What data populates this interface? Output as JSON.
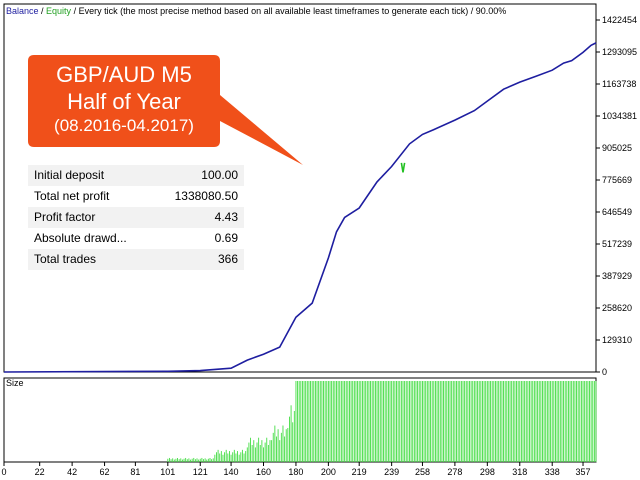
{
  "legend": {
    "balance": "Balance",
    "sep1": " / ",
    "equity": "Equity",
    "rest": " / Every tick (the most precise method based on all available least timeframes to generate each tick)",
    "sep2": " / ",
    "quality": "90.00%"
  },
  "callout": {
    "line1": "GBP/AUD M5",
    "line2": "Half of Year",
    "line3": "(08.2016-04.2017)",
    "color": "#f0501a"
  },
  "stats": [
    {
      "label": "Initial deposit",
      "value": "100.00"
    },
    {
      "label": "Total net profit",
      "value": "1338080.50"
    },
    {
      "label": "Profit factor",
      "value": "4.43"
    },
    {
      "label": "Absolute drawd...",
      "value": "0.69"
    },
    {
      "label": "Total trades",
      "value": "366"
    }
  ],
  "size_label": "Size",
  "chart_data": {
    "type": "line",
    "y_ticks": [
      "1422454",
      "1293095",
      "1163738",
      "1034381",
      "905025",
      "775669",
      "646549",
      "517239",
      "387929",
      "258620",
      "129310",
      "0"
    ],
    "x_ticks": [
      "0",
      "22",
      "42",
      "62",
      "81",
      "101",
      "121",
      "140",
      "160",
      "180",
      "200",
      "219",
      "239",
      "258",
      "278",
      "298",
      "318",
      "338",
      "357"
    ],
    "xlim": [
      0,
      365
    ],
    "ylim": [
      0,
      1422454
    ],
    "series": [
      {
        "name": "Balance",
        "color": "#1e1ea0",
        "x": [
          0,
          101,
          121,
          140,
          150,
          160,
          170,
          180,
          190,
          200,
          205,
          210,
          219,
          230,
          239,
          250,
          258,
          265,
          278,
          290,
          298,
          308,
          318,
          328,
          338,
          345,
          350,
          357,
          362,
          365
        ],
        "y": [
          100,
          3000,
          6000,
          16000,
          50000,
          75000,
          105000,
          230000,
          290000,
          480000,
          590000,
          650000,
          690000,
          800000,
          865000,
          960000,
          1000000,
          1020000,
          1060000,
          1100000,
          1140000,
          1190000,
          1220000,
          1245000,
          1270000,
          1300000,
          1310000,
          1345000,
          1375000,
          1385000
        ]
      },
      {
        "name": "Equity",
        "color": "#22c022",
        "x": [
          245,
          246,
          247
        ],
        "y": [
          880000,
          840000,
          880000
        ]
      }
    ],
    "size_bars": {
      "color": "#44dd44",
      "x_start": 101,
      "x_end": 365,
      "levels": [
        {
          "from": 101,
          "to": 130,
          "value": 0.05
        },
        {
          "from": 130,
          "to": 150,
          "value": 0.15
        },
        {
          "from": 150,
          "to": 165,
          "value": 0.3
        },
        {
          "from": 165,
          "to": 175,
          "value": 0.45
        },
        {
          "from": 175,
          "to": 180,
          "value": 0.7
        },
        {
          "from": 180,
          "to": 365,
          "value": 1.0
        }
      ]
    }
  }
}
